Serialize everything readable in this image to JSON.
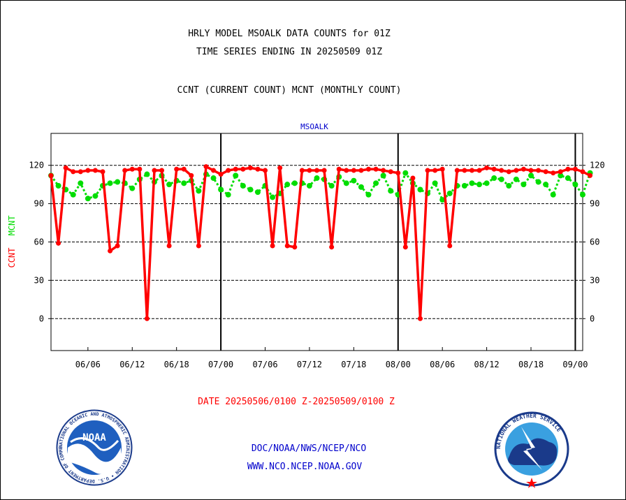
{
  "header": {
    "line1": "HRLY MODEL MSOALK DATA COUNTS for 01Z",
    "line2": "TIME SERIES ENDING IN 20250509 01Z",
    "subtitle": "CCNT (CURRENT COUNT) MCNT (MONTHLY COUNT)"
  },
  "footer": {
    "date_range": "DATE 20250506/0100 Z-20250509/0100 Z",
    "org": "DOC/NOAA/NWS/NCEP/NCO",
    "url": "WWW.NCO.NCEP.NOAA.GOV",
    "noaa_logo_text": "NOAA",
    "noaa_ring_text": "NATIONAL OCEANIC AND ATMOSPHERIC ADMINISTRATION • U.S. DEPARTMENT OF COMMERCE",
    "nws_ring_text": "NATIONAL WEATHER SERVICE"
  },
  "colors": {
    "ccnt": "#ff0000",
    "mcnt": "#00dd00",
    "panel_title": "#0000cc",
    "footer_links": "#0000cc",
    "date_range": "#ff0000"
  },
  "chart_data": {
    "type": "line",
    "title": "MSOALK",
    "ylabel_parts": [
      {
        "text": "CCNT",
        "color": "#ff0000"
      },
      {
        "text": "MCNT",
        "color": "#00dd00"
      }
    ],
    "y_ticks": [
      0,
      30,
      60,
      90,
      120
    ],
    "ylim": [
      -25,
      145
    ],
    "x_ticks": [
      "06/06",
      "06/12",
      "06/18",
      "07/00",
      "07/06",
      "07/12",
      "07/18",
      "08/00",
      "08/06",
      "08/12",
      "08/18",
      "09/00"
    ],
    "x_tick_hours": [
      5,
      11,
      17,
      23,
      29,
      35,
      41,
      47,
      53,
      59,
      65,
      71
    ],
    "xlim": [
      0,
      72
    ],
    "day_boundaries": [
      23,
      47,
      71
    ],
    "grid": "horizontal dashed at y ticks",
    "series": [
      {
        "name": "CCNT",
        "color": "#ff0000",
        "values": [
          112,
          59,
          118,
          115,
          115,
          116,
          116,
          115,
          53,
          57,
          116,
          117,
          117,
          0,
          116,
          116,
          57,
          117,
          117,
          112,
          57,
          119,
          116,
          113,
          116,
          117,
          117,
          118,
          117,
          116,
          57,
          118,
          57,
          56,
          116,
          116,
          116,
          116,
          56,
          117,
          116,
          116,
          116,
          117,
          117,
          116,
          115,
          114,
          56,
          110,
          0,
          116,
          116,
          117,
          57,
          116,
          116,
          116,
          116,
          118,
          117,
          116,
          115,
          116,
          117,
          116,
          116,
          115,
          114,
          115,
          117,
          117,
          115,
          112
        ]
      },
      {
        "name": "MCNT",
        "color": "#00dd00",
        "values": [
          112,
          104,
          101,
          97,
          106,
          94,
          96,
          104,
          106,
          107,
          106,
          102,
          109,
          113,
          107,
          112,
          105,
          108,
          106,
          108,
          100,
          113,
          110,
          101,
          97,
          112,
          104,
          101,
          99,
          104,
          95,
          98,
          105,
          106,
          106,
          104,
          110,
          109,
          104,
          111,
          106,
          108,
          103,
          97,
          106,
          112,
          100,
          97,
          114,
          106,
          101,
          98,
          106,
          93,
          98,
          104,
          104,
          106,
          105,
          106,
          110,
          109,
          104,
          109,
          105,
          112,
          107,
          105,
          97,
          112,
          110,
          105,
          97,
          114
        ]
      }
    ]
  }
}
